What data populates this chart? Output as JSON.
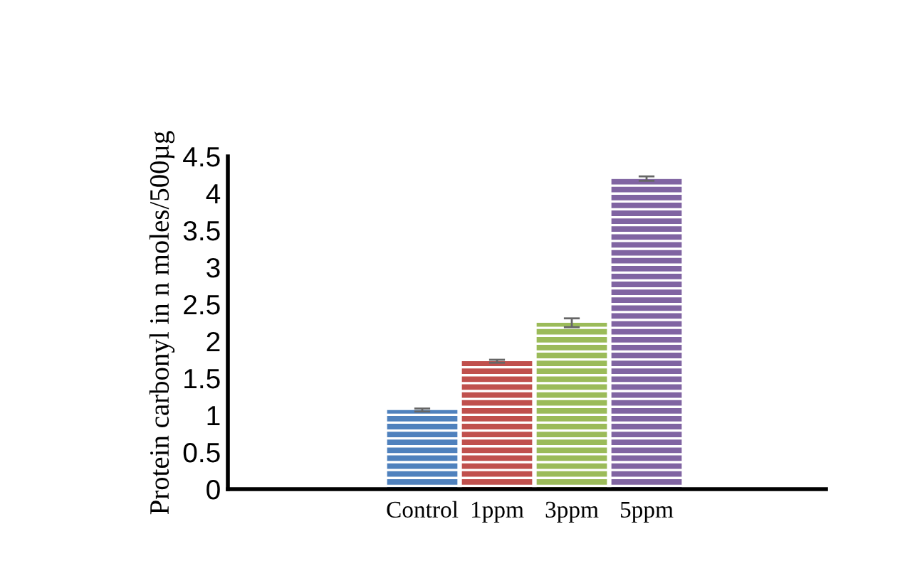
{
  "chart_data": {
    "type": "bar",
    "ylabel": "Protein carbonyl in n moles/500µg",
    "categories": [
      "Control",
      "1ppm",
      "3ppm",
      "5ppm"
    ],
    "values": [
      1.07,
      1.73,
      2.25,
      4.2
    ],
    "errors": [
      0.02,
      0.02,
      0.06,
      0.03
    ],
    "colors": [
      "#4f81bd",
      "#c0504d",
      "#9bbb59",
      "#8064a2"
    ],
    "ylim": [
      0,
      4.5
    ],
    "yticks": [
      0,
      0.5,
      1,
      1.5,
      2,
      2.5,
      3,
      3.5,
      4,
      4.5
    ],
    "grid": false,
    "legend": false
  }
}
